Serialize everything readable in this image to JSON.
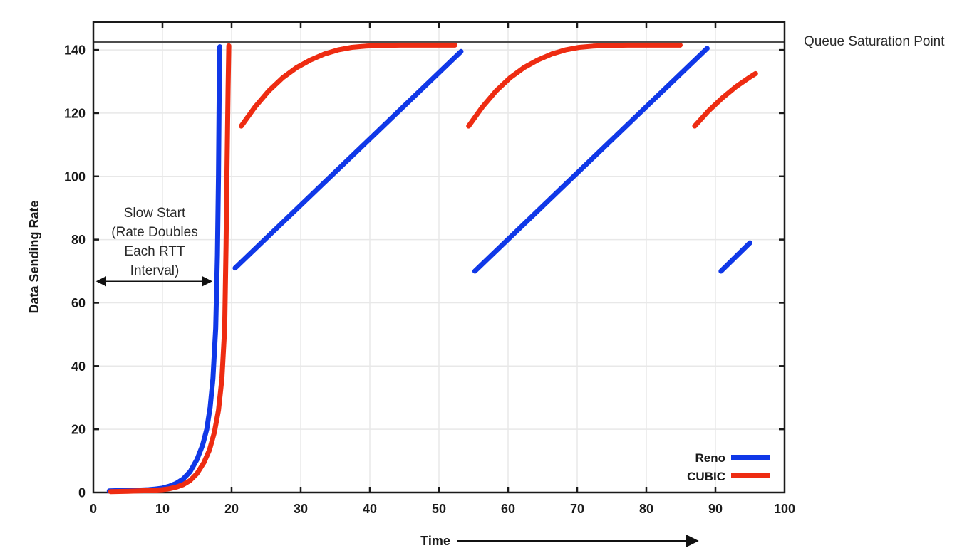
{
  "figure": {
    "background": "#ffffff",
    "axis_color": "#1a1a1a",
    "grid_color": "#e8e8e8",
    "text_color": "#1a1a1a"
  },
  "chart_data": {
    "type": "line",
    "title": "",
    "xlabel": "Time",
    "ylabel": "Data Sending Rate",
    "xlim": [
      0,
      100
    ],
    "ylim": [
      0,
      148.8
    ],
    "x_ticks": [
      0,
      10,
      20,
      30,
      40,
      50,
      60,
      70,
      80,
      90,
      100
    ],
    "y_ticks": [
      0,
      20,
      40,
      60,
      80,
      100,
      120,
      140
    ],
    "grid": true,
    "legend_position": "inside-bottom-right",
    "series": [
      {
        "name": "Reno",
        "color": "#1038e8",
        "line_width": 7,
        "segments": [
          [
            [
              2.3,
              0.5
            ],
            [
              4,
              0.6
            ],
            [
              6,
              0.7
            ],
            [
              8,
              0.9
            ],
            [
              9,
              1.1
            ],
            [
              10,
              1.4
            ],
            [
              11,
              2
            ],
            [
              12,
              2.9
            ],
            [
              13,
              4.3
            ],
            [
              14,
              6.6
            ],
            [
              15,
              10.5
            ],
            [
              15.8,
              15
            ],
            [
              16.4,
              20
            ],
            [
              16.9,
              27
            ],
            [
              17.3,
              36
            ],
            [
              17.7,
              52
            ],
            [
              17.95,
              75
            ],
            [
              18.1,
              100
            ],
            [
              18.2,
              124
            ],
            [
              18.3,
              141
            ]
          ],
          [
            [
              20.5,
              71
            ],
            [
              53.2,
              139.5
            ]
          ],
          [
            [
              55.2,
              70
            ],
            [
              88.8,
              140.5
            ]
          ],
          [
            [
              90.8,
              70
            ],
            [
              95,
              79
            ]
          ]
        ]
      },
      {
        "name": "CUBIC",
        "color": "#ee2c12",
        "line_width": 7,
        "segments": [
          [
            [
              2.5,
              0.3
            ],
            [
              5,
              0.4
            ],
            [
              8,
              0.6
            ],
            [
              10,
              0.9
            ],
            [
              11,
              1.2
            ],
            [
              12,
              1.7
            ],
            [
              13,
              2.5
            ],
            [
              14,
              3.8
            ],
            [
              15,
              6
            ],
            [
              16,
              9.5
            ],
            [
              16.8,
              13.5
            ],
            [
              17.5,
              19
            ],
            [
              18.1,
              26
            ],
            [
              18.6,
              36
            ],
            [
              19,
              52
            ],
            [
              19.2,
              78
            ],
            [
              19.35,
              105
            ],
            [
              19.5,
              128
            ],
            [
              19.6,
              141.3
            ]
          ],
          [
            [
              21.4,
              115.9
            ],
            [
              23.4,
              122
            ],
            [
              25.4,
              127.1
            ],
            [
              27.4,
              131.2
            ],
            [
              29.4,
              134.4
            ],
            [
              31.4,
              136.8
            ],
            [
              33.4,
              138.7
            ],
            [
              35.4,
              140
            ],
            [
              37.4,
              140.8
            ],
            [
              39.4,
              141.2
            ],
            [
              41.4,
              141.4
            ],
            [
              44.4,
              141.5
            ],
            [
              52.3,
              141.5
            ]
          ],
          [
            [
              54.3,
              115.9
            ],
            [
              56.3,
              122
            ],
            [
              58.3,
              127.1
            ],
            [
              60.3,
              131.2
            ],
            [
              62.3,
              134.4
            ],
            [
              64.3,
              136.8
            ],
            [
              66.3,
              138.7
            ],
            [
              68.3,
              140
            ],
            [
              70.3,
              140.8
            ],
            [
              72.3,
              141.2
            ],
            [
              74.3,
              141.4
            ],
            [
              77.3,
              141.5
            ],
            [
              84.9,
              141.5
            ]
          ],
          [
            [
              87,
              115.9
            ],
            [
              89,
              120.7
            ],
            [
              91,
              124.8
            ],
            [
              93,
              128.4
            ],
            [
              95,
              131.4
            ],
            [
              95.8,
              132.5
            ]
          ]
        ]
      }
    ],
    "annotations": {
      "queue_saturation": {
        "label": "Queue Saturation Point",
        "value": 142.5,
        "line_color": "#4d4d4d"
      },
      "slow_start": {
        "lines": [
          "Slow Start",
          "(Rate Doubles",
          "Each RTT",
          "Interval)"
        ],
        "arrow_from_t": 0.6,
        "arrow_to_t": 17.0,
        "arrow_value": 66.8
      }
    }
  }
}
